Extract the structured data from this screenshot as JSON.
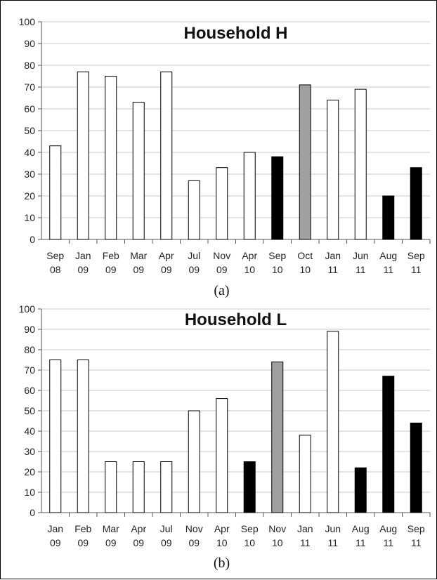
{
  "chart_data": [
    {
      "type": "bar",
      "title": "Household H",
      "caption": "(a)",
      "ylim": [
        0,
        100
      ],
      "yticks": [
        0,
        10,
        20,
        30,
        40,
        50,
        60,
        70,
        80,
        90,
        100
      ],
      "grid": true,
      "categories": [
        [
          "Sep",
          "08"
        ],
        [
          "Jan",
          "09"
        ],
        [
          "Feb",
          "09"
        ],
        [
          "Mar",
          "09"
        ],
        [
          "Apr",
          "09"
        ],
        [
          "Jul",
          "09"
        ],
        [
          "Nov",
          "09"
        ],
        [
          "Apr",
          "10"
        ],
        [
          "Sep",
          "10"
        ],
        [
          "Oct",
          "10"
        ],
        [
          "Jan",
          "11"
        ],
        [
          "Jun",
          "11"
        ],
        [
          "Aug",
          "11"
        ],
        [
          "Sep",
          "11"
        ]
      ],
      "values": [
        43,
        77,
        75,
        63,
        77,
        27,
        33,
        40,
        38,
        71,
        64,
        69,
        20,
        33
      ],
      "bar_colors": [
        "#ffffff",
        "#ffffff",
        "#ffffff",
        "#ffffff",
        "#ffffff",
        "#ffffff",
        "#ffffff",
        "#ffffff",
        "#000000",
        "#a0a0a0",
        "#ffffff",
        "#ffffff",
        "#000000",
        "#000000"
      ]
    },
    {
      "type": "bar",
      "title": "Household L",
      "caption": "(b)",
      "ylim": [
        0,
        100
      ],
      "yticks": [
        0,
        10,
        20,
        30,
        40,
        50,
        60,
        70,
        80,
        90,
        100
      ],
      "grid": true,
      "categories": [
        [
          "Jan",
          "09"
        ],
        [
          "Feb",
          "09"
        ],
        [
          "Mar",
          "09"
        ],
        [
          "Apr",
          "09"
        ],
        [
          "Jul",
          "09"
        ],
        [
          "Nov",
          "09"
        ],
        [
          "Apr",
          "10"
        ],
        [
          "Sep",
          "10"
        ],
        [
          "Nov",
          "10"
        ],
        [
          "Jan",
          "11"
        ],
        [
          "Jun",
          "11"
        ],
        [
          "Aug",
          "11"
        ],
        [
          "Aug",
          "11"
        ],
        [
          "Sep",
          "11"
        ]
      ],
      "values": [
        75,
        75,
        25,
        25,
        25,
        50,
        56,
        25,
        74,
        38,
        89,
        22,
        67,
        44
      ],
      "bar_colors": [
        "#ffffff",
        "#ffffff",
        "#ffffff",
        "#ffffff",
        "#ffffff",
        "#ffffff",
        "#ffffff",
        "#000000",
        "#a0a0a0",
        "#ffffff",
        "#ffffff",
        "#000000",
        "#000000",
        "#000000"
      ]
    }
  ]
}
